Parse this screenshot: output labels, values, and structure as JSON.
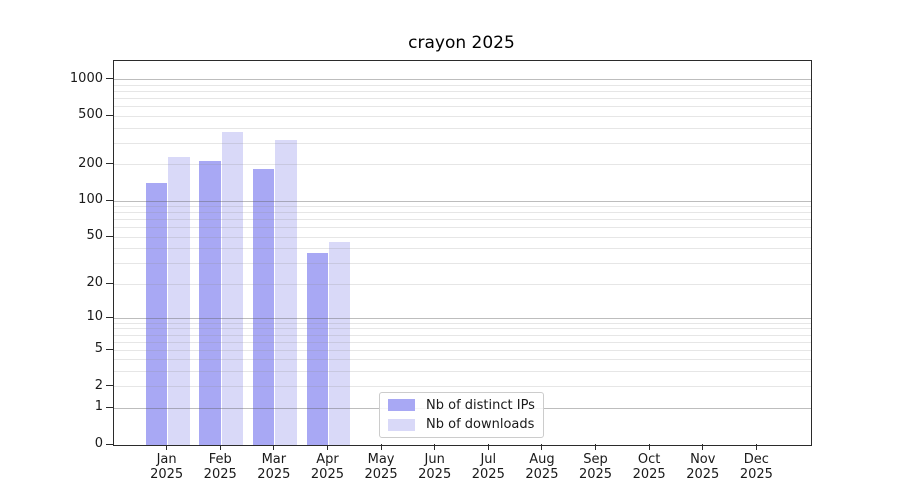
{
  "chart_data": {
    "type": "bar",
    "title": "crayon 2025",
    "categories": [
      "Jan",
      "Feb",
      "Mar",
      "Apr",
      "May",
      "Jun",
      "Jul",
      "Aug",
      "Sep",
      "Oct",
      "Nov",
      "Dec"
    ],
    "category_year": "2025",
    "series": [
      {
        "name": "Nb of distinct IPs",
        "color": "#a8a8f4",
        "values": [
          142,
          213,
          185,
          37,
          0,
          0,
          0,
          0,
          0,
          0,
          0,
          0
        ]
      },
      {
        "name": "Nb of downloads",
        "color": "#d9d9f8",
        "values": [
          232,
          375,
          318,
          46,
          0,
          0,
          0,
          0,
          0,
          0,
          0,
          0
        ]
      }
    ],
    "y_scale": "log1p",
    "y_ticks": [
      0,
      1,
      2,
      5,
      10,
      20,
      50,
      100,
      200,
      500,
      1000
    ],
    "y_major_gridlines": [
      1,
      10,
      100,
      1000
    ],
    "ylim": [
      0,
      1460
    ],
    "grid": "both",
    "legend_position": "lower-center",
    "colors": {
      "spine": "#2b2b2b",
      "major_grid": "rgba(90,90,90,0.40)",
      "minor_grid": "rgba(140,140,140,0.22)",
      "text": "#1a1a1a",
      "legend_border": "#cccccc",
      "background": "#ffffff"
    }
  }
}
